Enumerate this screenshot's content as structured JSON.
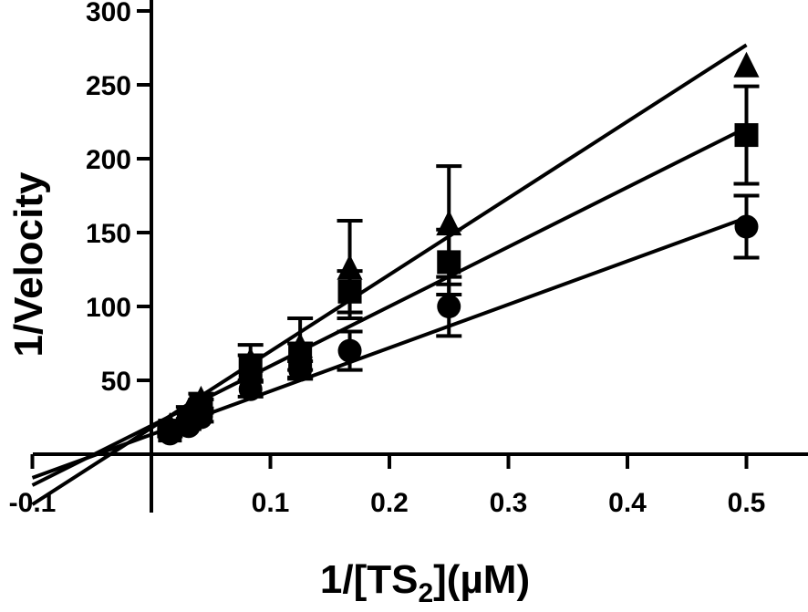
{
  "chart_data": {
    "type": "scatter",
    "title": "",
    "xlabel": "1/[TS2](µM)",
    "xlabel_parts": [
      "1/[TS",
      "2",
      "](µM)"
    ],
    "ylabel": "1/Velocity",
    "xlim": [
      -0.1,
      0.5
    ],
    "ylim": [
      0,
      300
    ],
    "x_ticks": [
      -0.1,
      0.1,
      0.2,
      0.3,
      0.4,
      0.5
    ],
    "x_tick_labels": [
      "-0.1",
      "0.1",
      "0.2",
      "0.3",
      "0.4",
      "0.5"
    ],
    "y_ticks": [
      50,
      100,
      150,
      200,
      250,
      300
    ],
    "y_tick_labels": [
      "50",
      "100",
      "150",
      "200",
      "250",
      "300"
    ],
    "grid": false,
    "legend": "none",
    "series": [
      {
        "marker": "circle",
        "x": [
          0.0156,
          0.0313,
          0.0417,
          0.0833,
          0.125,
          0.1667,
          0.25,
          0.5
        ],
        "y": [
          14,
          19,
          25,
          44,
          57,
          70,
          100,
          154
        ],
        "error": [
          2,
          2,
          3,
          5,
          6,
          13,
          20,
          21
        ],
        "fit_line": {
          "x": [
            -0.1,
            0.5
          ],
          "y": [
            -16,
            160
          ]
        }
      },
      {
        "marker": "square",
        "x": [
          0.0156,
          0.0313,
          0.0417,
          0.0833,
          0.125,
          0.1667,
          0.25,
          0.5
        ],
        "y": [
          16,
          25,
          33,
          58,
          66,
          110,
          130,
          216
        ],
        "error": [
          2,
          3,
          4,
          9,
          9,
          14,
          22,
          33
        ],
        "fit_line": {
          "x": [
            -0.1,
            0.5
          ],
          "y": [
            -21,
            221
          ]
        }
      },
      {
        "marker": "triangle",
        "x": [
          0.0156,
          0.0313,
          0.0417,
          0.0833,
          0.125,
          0.1667,
          0.25,
          0.5
        ],
        "y": [
          18,
          28,
          36,
          62,
          72,
          125,
          155,
          262
        ],
        "error": [
          3,
          4,
          5,
          12,
          20,
          33,
          40,
          0
        ],
        "fit_line": {
          "x": [
            -0.1,
            0.5
          ],
          "y": [
            -34,
            277
          ]
        }
      }
    ]
  }
}
